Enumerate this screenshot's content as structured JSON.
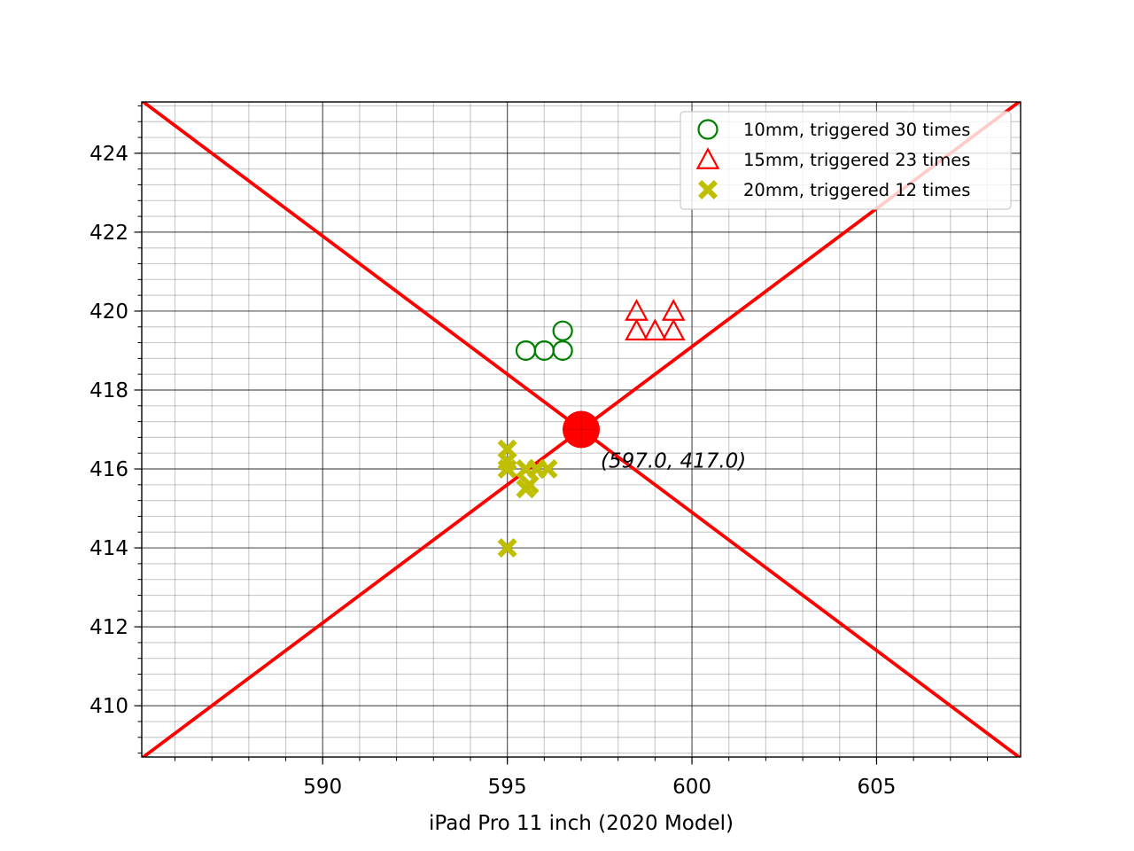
{
  "chart_data": {
    "type": "scatter",
    "title": "",
    "xlabel": "iPad Pro 11 inch (2020 Model)",
    "ylabel": "",
    "xlim": [
      585.1,
      608.9
    ],
    "ylim": [
      408.7,
      425.3
    ],
    "x_ticks": [
      590,
      595,
      600,
      605
    ],
    "y_ticks": [
      410,
      412,
      414,
      416,
      418,
      420,
      422,
      424
    ],
    "x_tick_labels": [
      "590",
      "595",
      "600",
      "605"
    ],
    "y_tick_labels": [
      "410",
      "412",
      "414",
      "416",
      "418",
      "420",
      "422",
      "424"
    ],
    "grid": "major and minor",
    "legend_position": "top-right",
    "series": [
      {
        "name": "10mm, triggered 30 times",
        "marker": "open-circle",
        "color": "#008000",
        "points": [
          [
            595.5,
            419.0
          ],
          [
            596.0,
            419.0
          ],
          [
            596.5,
            419.0
          ],
          [
            596.5,
            419.5
          ]
        ]
      },
      {
        "name": "15mm, triggered 23 times",
        "marker": "open-triangle",
        "color": "#ff0000",
        "points": [
          [
            598.5,
            420.0
          ],
          [
            598.5,
            419.5
          ],
          [
            599.0,
            419.5
          ],
          [
            599.5,
            419.5
          ],
          [
            599.5,
            420.0
          ]
        ]
      },
      {
        "name": "20mm, triggered 12 times",
        "marker": "filled-x",
        "color": "#bfbf00",
        "points": [
          [
            595.0,
            416.5
          ],
          [
            595.0,
            416.2
          ],
          [
            595.0,
            416.0
          ],
          [
            595.5,
            416.0
          ],
          [
            595.8,
            416.0
          ],
          [
            596.1,
            416.0
          ],
          [
            595.5,
            415.5
          ],
          [
            595.6,
            415.6
          ],
          [
            595.0,
            414.0
          ]
        ]
      }
    ],
    "center_point": {
      "x": 597.0,
      "y": 417.0,
      "color": "#ff0000"
    },
    "annotation": "(597.0, 417.0)",
    "lines": [
      {
        "name": "diagonal-rising",
        "color": "#ff0000",
        "slope": 0.7,
        "through": [
          597.0,
          417.0
        ]
      },
      {
        "name": "diagonal-falling",
        "color": "#ff0000",
        "slope": -0.7,
        "through": [
          597.0,
          417.0
        ]
      }
    ]
  }
}
